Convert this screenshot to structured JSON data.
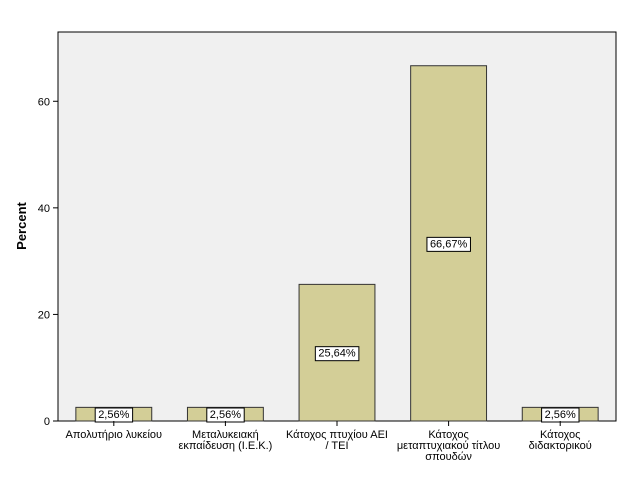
{
  "chart_data": {
    "type": "bar",
    "ylabel": "Percent",
    "ylim": [
      0,
      73
    ],
    "yticks": [
      0,
      20,
      40,
      60
    ],
    "grid": false,
    "categories": [
      [
        "Απολυτήριο λυκείου"
      ],
      [
        "Μεταλυκειακή",
        "εκπαίδευση (Ι.Ε.Κ.)"
      ],
      [
        "Κάτοχος πτυχίου ΑΕΙ",
        "/ ΤΕΙ"
      ],
      [
        "Κάτοχος",
        "μεταπτυχιακού τίτλου",
        "σπουδών"
      ],
      [
        "Κάτοχος",
        "διδακτορικού"
      ]
    ],
    "values": [
      2.56,
      2.56,
      25.64,
      66.67,
      2.56
    ],
    "data_labels": [
      "2,56%",
      "2,56%",
      "25,64%",
      "66,67%",
      "2,56%"
    ],
    "colors": {
      "bar_fill": "#d3ce97",
      "bar_stroke": "#333333",
      "plot_background": "#f0f0f0",
      "axis": "#000000"
    }
  }
}
